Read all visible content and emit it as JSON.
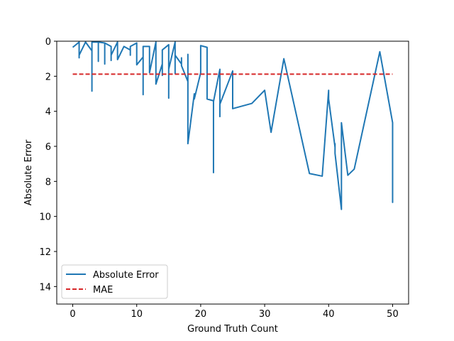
{
  "chart_data": {
    "type": "line",
    "xlabel": "Ground Truth Count",
    "ylabel": "Absolute Error",
    "xlim": [
      -2.5,
      52.5
    ],
    "ylim": [
      15,
      0
    ],
    "y_inverted": true,
    "xticks": [
      "0",
      "10",
      "20",
      "30",
      "40",
      "50"
    ],
    "xtick_values": [
      0,
      10,
      20,
      30,
      40,
      50
    ],
    "yticks": [
      "0",
      "2",
      "4",
      "6",
      "8",
      "10",
      "12",
      "14"
    ],
    "ytick_values": [
      0,
      2,
      4,
      6,
      8,
      10,
      12,
      14
    ],
    "grid": false,
    "legend_position": "lower left",
    "series": [
      {
        "name": "Absolute Error",
        "color": "#1f77b4",
        "style": "solid",
        "points": [
          [
            0,
            0.35
          ],
          [
            1,
            0.05
          ],
          [
            1,
            0.95
          ],
          [
            1,
            0.8
          ],
          [
            2,
            0.05
          ],
          [
            3,
            0.55
          ],
          [
            3,
            2.85
          ],
          [
            3,
            0.05
          ],
          [
            4,
            0.05
          ],
          [
            4,
            1.15
          ],
          [
            4,
            0.3
          ],
          [
            4,
            0.05
          ],
          [
            5,
            0.1
          ],
          [
            5,
            1.3
          ],
          [
            5,
            0.1
          ],
          [
            6,
            0.3
          ],
          [
            6,
            1.1
          ],
          [
            6,
            0.8
          ],
          [
            7,
            0.05
          ],
          [
            7,
            1.05
          ],
          [
            8,
            0.3
          ],
          [
            9,
            0.5
          ],
          [
            9,
            0.8
          ],
          [
            9,
            0.3
          ],
          [
            10,
            0.1
          ],
          [
            10,
            1.35
          ],
          [
            11,
            0.9
          ],
          [
            11,
            3.05
          ],
          [
            11,
            0.3
          ],
          [
            11,
            1.0
          ],
          [
            11,
            0.3
          ],
          [
            12,
            0.3
          ],
          [
            12,
            1.8
          ],
          [
            13,
            0.05
          ],
          [
            13,
            2.45
          ],
          [
            14,
            1.3
          ],
          [
            14,
            0.7
          ],
          [
            14,
            1.95
          ],
          [
            14,
            0.5
          ],
          [
            15,
            0.2
          ],
          [
            15,
            3.25
          ],
          [
            15,
            1.6
          ],
          [
            16,
            0.05
          ],
          [
            16,
            1.85
          ],
          [
            16,
            0.8
          ],
          [
            17,
            1.3
          ],
          [
            17,
            0.95
          ],
          [
            17,
            1.4
          ],
          [
            18,
            2.3
          ],
          [
            18,
            0.75
          ],
          [
            18,
            5.85
          ],
          [
            19,
            3.0
          ],
          [
            19,
            3.3
          ],
          [
            20,
            1.8
          ],
          [
            20,
            0.25
          ],
          [
            21,
            0.35
          ],
          [
            21,
            3.3
          ],
          [
            22,
            3.4
          ],
          [
            22,
            7.5
          ],
          [
            22,
            3.45
          ],
          [
            23,
            1.6
          ],
          [
            23,
            4.3
          ],
          [
            23,
            3.6
          ],
          [
            25,
            1.7
          ],
          [
            25,
            3.85
          ],
          [
            28,
            3.55
          ],
          [
            30,
            2.8
          ],
          [
            31,
            5.2
          ],
          [
            33,
            1.0
          ],
          [
            37,
            7.55
          ],
          [
            39,
            7.7
          ],
          [
            40,
            2.8
          ],
          [
            40,
            3.3
          ],
          [
            41,
            6.05
          ],
          [
            41,
            5.85
          ],
          [
            41,
            6.4
          ],
          [
            42,
            9.6
          ],
          [
            42,
            4.65
          ],
          [
            43,
            7.65
          ],
          [
            44,
            7.3
          ],
          [
            48,
            0.6
          ],
          [
            50,
            4.65
          ],
          [
            50,
            9.2
          ],
          [
            50,
            6.65
          ],
          [
            50,
            9.1
          ]
        ]
      },
      {
        "name": "MAE",
        "color": "#d62728",
        "style": "dashed",
        "points": [
          [
            0,
            1.88
          ],
          [
            50,
            1.88
          ]
        ]
      }
    ]
  }
}
